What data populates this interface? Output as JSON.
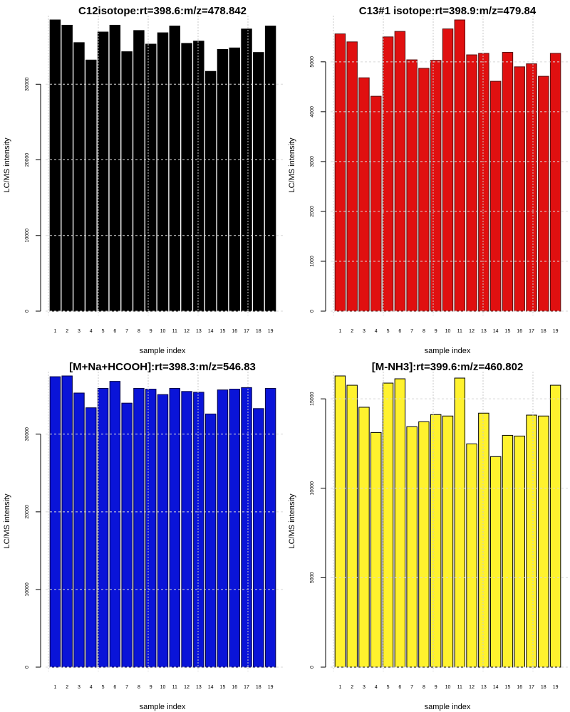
{
  "chart_data": [
    {
      "type": "bar",
      "title": "C12isotope:rt=398.6:m/z=478.842",
      "xlabel": "sample index",
      "ylabel": "LC/MS intensity",
      "categories": [
        "1",
        "2",
        "3",
        "4",
        "5",
        "6",
        "7",
        "8",
        "9",
        "10",
        "11",
        "12",
        "13",
        "14",
        "15",
        "16",
        "17",
        "18",
        "19"
      ],
      "values": [
        38500,
        37800,
        35500,
        33200,
        36900,
        37800,
        34300,
        37100,
        35300,
        36800,
        37700,
        35400,
        35700,
        31700,
        34600,
        34800,
        37300,
        34200,
        37700
      ],
      "yticks": [
        0,
        10000,
        20000,
        30000
      ],
      "ylim": [
        0,
        38500
      ],
      "color": "#000000",
      "border": "#000000",
      "grid": true
    },
    {
      "type": "bar",
      "title": "C13#1 isotope:rt=398.9:m/z=479.84",
      "xlabel": "sample index",
      "ylabel": "LC/MS intensity",
      "categories": [
        "1",
        "2",
        "3",
        "4",
        "5",
        "6",
        "7",
        "8",
        "9",
        "10",
        "11",
        "12",
        "13",
        "14",
        "15",
        "16",
        "17",
        "18",
        "19"
      ],
      "values": [
        5560,
        5400,
        4680,
        4310,
        5500,
        5610,
        5040,
        4870,
        5030,
        5660,
        5840,
        5140,
        5170,
        4610,
        5190,
        4900,
        4960,
        4710,
        5170
      ],
      "yticks": [
        0,
        1000,
        2000,
        3000,
        4000,
        5000
      ],
      "ylim": [
        0,
        5840
      ],
      "color": "#e01010",
      "border": "#5a1010",
      "grid": true
    },
    {
      "type": "bar",
      "title": "[M+Na+HCOOH]:rt=398.3:m/z=546.83",
      "xlabel": "sample index",
      "ylabel": "LC/MS intensity",
      "categories": [
        "1",
        "2",
        "3",
        "4",
        "5",
        "6",
        "7",
        "8",
        "9",
        "10",
        "11",
        "12",
        "13",
        "14",
        "15",
        "16",
        "17",
        "18",
        "19"
      ],
      "values": [
        37400,
        37500,
        35300,
        33400,
        35900,
        36800,
        34000,
        35900,
        35800,
        35100,
        35900,
        35500,
        35400,
        32600,
        35700,
        35800,
        36000,
        33300,
        35900
      ],
      "yticks": [
        0,
        10000,
        20000,
        30000
      ],
      "ylim": [
        0,
        37500
      ],
      "color": "#0a14d8",
      "border": "#000044",
      "grid": true
    },
    {
      "type": "bar",
      "title": "[M-NH3]:rt=399.6:m/z=460.802",
      "xlabel": "sample index",
      "ylabel": "LC/MS intensity",
      "categories": [
        "1",
        "2",
        "3",
        "4",
        "5",
        "6",
        "7",
        "8",
        "9",
        "10",
        "11",
        "12",
        "13",
        "14",
        "15",
        "16",
        "17",
        "18",
        "19"
      ],
      "values": [
        16280,
        15760,
        14530,
        13120,
        15880,
        16120,
        13440,
        13720,
        14120,
        14040,
        16160,
        12480,
        14200,
        11770,
        12960,
        12920,
        14090,
        14040,
        15760
      ],
      "yticks": [
        0,
        5000,
        10000,
        15000
      ],
      "ylim": [
        0,
        16280
      ],
      "color": "#fff22e",
      "border": "#000000",
      "grid": true
    }
  ]
}
